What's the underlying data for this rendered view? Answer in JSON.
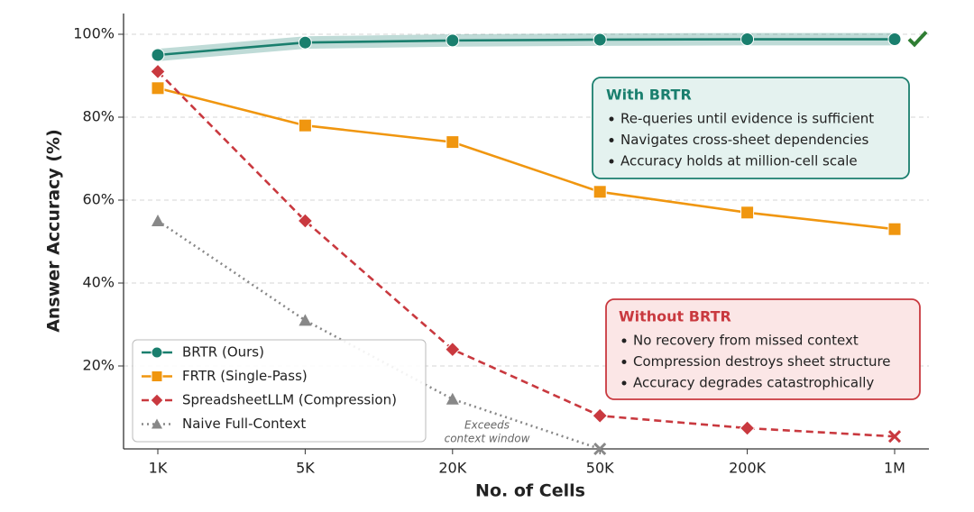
{
  "chart_data": {
    "type": "line",
    "xlabel": "No. of Cells",
    "ylabel": "Answer Accuracy (%)",
    "categories": [
      "1K",
      "5K",
      "20K",
      "50K",
      "200K",
      "1M"
    ],
    "ylim": [
      0,
      105
    ],
    "yticks": [
      {
        "value": 20,
        "label": "20%"
      },
      {
        "value": 40,
        "label": "40%"
      },
      {
        "value": 60,
        "label": "60%"
      },
      {
        "value": 80,
        "label": "80%"
      },
      {
        "value": 100,
        "label": "100%"
      }
    ],
    "grid": true,
    "legend": "lower left",
    "series": [
      {
        "name": "BRTR (Ours)",
        "color": "#1a7f6e",
        "marker": "circle",
        "linestyle": "solid",
        "end_mark": "check",
        "values": [
          95,
          98,
          98.5,
          98.7,
          98.8,
          98.8
        ],
        "lower": [
          93.5,
          96.5,
          97,
          97.2,
          97.3,
          97.3
        ],
        "upper": [
          96.5,
          99.5,
          100,
          100.2,
          100.3,
          100.3
        ]
      },
      {
        "name": "FRTR (Single-Pass)",
        "color": "#f0960f",
        "marker": "square",
        "linestyle": "solid",
        "values": [
          87,
          78,
          74,
          62,
          57,
          53
        ]
      },
      {
        "name": "SpreadsheetLLM (Compression)",
        "color": "#c9393f",
        "marker": "diamond",
        "linestyle": "dashed",
        "last_marker": "x",
        "values": [
          91,
          55,
          24,
          8,
          5,
          3
        ]
      },
      {
        "name": "Naive Full-Context",
        "color": "#888888",
        "marker": "triangle",
        "linestyle": "dotted",
        "last_marker": "x",
        "values": [
          55,
          31,
          12,
          0,
          null,
          null
        ]
      }
    ],
    "boxes": [
      {
        "title": "With BRTR",
        "color": "#1a7f6e",
        "fill": "#e4f2ef",
        "lines": [
          "Re-queries until evidence is sufficient",
          "Navigates cross-sheet dependencies",
          "Accuracy holds at million-cell scale"
        ]
      },
      {
        "title": "Without BRTR",
        "color": "#c9393f",
        "fill": "#fbe6e6",
        "lines": [
          "No recovery from missed context",
          "Compression destroys sheet structure",
          "Accuracy degrades catastrophically"
        ]
      }
    ],
    "note": [
      "Exceeds",
      "context window"
    ]
  }
}
